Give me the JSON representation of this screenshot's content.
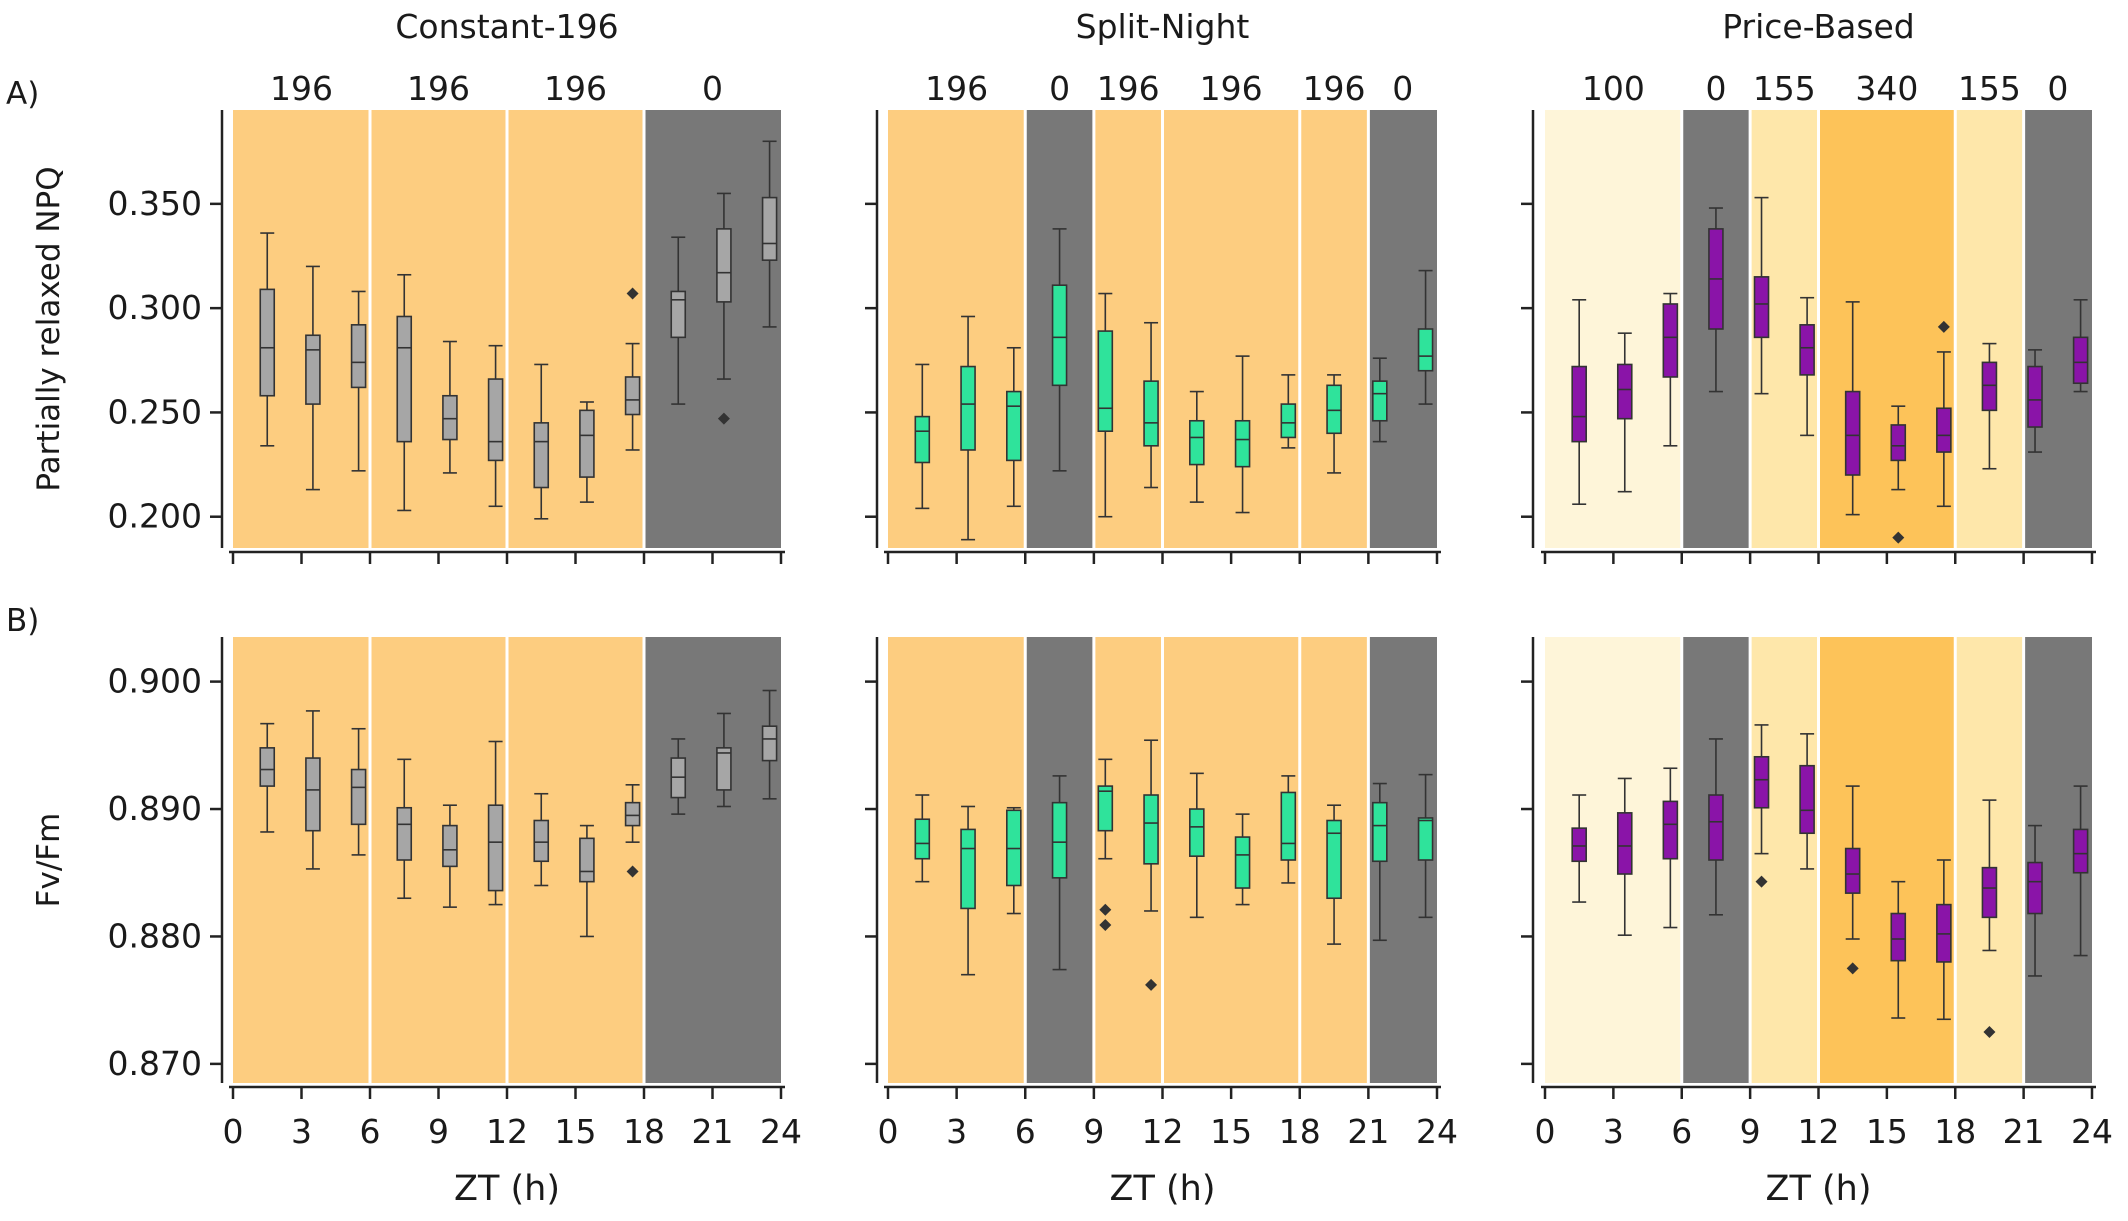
{
  "chart_data": {
    "type": "box",
    "x_axis": {
      "label": "ZT (h)",
      "range": [
        0,
        24
      ],
      "ticks": [
        0,
        3,
        6,
        9,
        12,
        15,
        18,
        21,
        24
      ]
    },
    "columns": [
      {
        "title": "Constant-196",
        "box_color": "#a6a6a6",
        "segments": [
          [
            0,
            6,
            "196"
          ],
          [
            6,
            12,
            "196"
          ],
          [
            12,
            18,
            "196"
          ],
          [
            18,
            24,
            "0"
          ]
        ]
      },
      {
        "title": "Split-Night",
        "box_color": "#2fe39b",
        "segments": [
          [
            0,
            6,
            "196"
          ],
          [
            6,
            9,
            "0"
          ],
          [
            9,
            12,
            "196"
          ],
          [
            12,
            18,
            "196"
          ],
          [
            18,
            21,
            "196"
          ],
          [
            21,
            24,
            "0"
          ]
        ]
      },
      {
        "title": "Price-Based",
        "box_color": "#8a14a8",
        "segments": [
          [
            0,
            6,
            "100"
          ],
          [
            6,
            9,
            "0"
          ],
          [
            9,
            12,
            "155"
          ],
          [
            12,
            18,
            "340"
          ],
          [
            18,
            21,
            "155"
          ],
          [
            21,
            24,
            "0"
          ]
        ]
      }
    ],
    "rows": [
      {
        "label": "A)",
        "ylabel": "Partially relaxed NPQ",
        "ylim": [
          0.185,
          0.395
        ],
        "ticks": [
          0.2,
          0.25,
          0.3,
          0.35
        ],
        "tick_labels": [
          "0.200",
          "0.250",
          "0.300",
          "0.350"
        ],
        "data": [
          [
            {
              "x": 1.5,
              "min": 0.234,
              "q1": 0.258,
              "med": 0.281,
              "q3": 0.309,
              "max": 0.336,
              "out": []
            },
            {
              "x": 3.5,
              "min": 0.213,
              "q1": 0.254,
              "med": 0.28,
              "q3": 0.287,
              "max": 0.32,
              "out": []
            },
            {
              "x": 5.5,
              "min": 0.222,
              "q1": 0.262,
              "med": 0.274,
              "q3": 0.292,
              "max": 0.308,
              "out": []
            },
            {
              "x": 7.5,
              "min": 0.203,
              "q1": 0.236,
              "med": 0.281,
              "q3": 0.296,
              "max": 0.316,
              "out": []
            },
            {
              "x": 9.5,
              "min": 0.221,
              "q1": 0.237,
              "med": 0.247,
              "q3": 0.258,
              "max": 0.284,
              "out": []
            },
            {
              "x": 11.5,
              "min": 0.205,
              "q1": 0.227,
              "med": 0.236,
              "q3": 0.266,
              "max": 0.282,
              "out": []
            },
            {
              "x": 13.5,
              "min": 0.199,
              "q1": 0.214,
              "med": 0.236,
              "q3": 0.245,
              "max": 0.273,
              "out": []
            },
            {
              "x": 15.5,
              "min": 0.207,
              "q1": 0.219,
              "med": 0.239,
              "q3": 0.251,
              "max": 0.255,
              "out": []
            },
            {
              "x": 17.5,
              "min": 0.232,
              "q1": 0.249,
              "med": 0.256,
              "q3": 0.267,
              "max": 0.283,
              "out": [
                0.307
              ]
            },
            {
              "x": 19.5,
              "min": 0.254,
              "q1": 0.286,
              "med": 0.304,
              "q3": 0.308,
              "max": 0.334,
              "out": []
            },
            {
              "x": 21.5,
              "min": 0.266,
              "q1": 0.303,
              "med": 0.317,
              "q3": 0.338,
              "max": 0.355,
              "out": [
                0.247
              ]
            },
            {
              "x": 23.5,
              "min": 0.291,
              "q1": 0.323,
              "med": 0.331,
              "q3": 0.353,
              "max": 0.38,
              "out": []
            }
          ],
          [
            {
              "x": 1.5,
              "min": 0.204,
              "q1": 0.226,
              "med": 0.241,
              "q3": 0.248,
              "max": 0.273,
              "out": []
            },
            {
              "x": 3.5,
              "min": 0.189,
              "q1": 0.232,
              "med": 0.254,
              "q3": 0.272,
              "max": 0.296,
              "out": []
            },
            {
              "x": 5.5,
              "min": 0.205,
              "q1": 0.227,
              "med": 0.253,
              "q3": 0.26,
              "max": 0.281,
              "out": []
            },
            {
              "x": 7.5,
              "min": 0.222,
              "q1": 0.263,
              "med": 0.286,
              "q3": 0.311,
              "max": 0.338,
              "out": []
            },
            {
              "x": 9.5,
              "min": 0.2,
              "q1": 0.241,
              "med": 0.252,
              "q3": 0.289,
              "max": 0.307,
              "out": []
            },
            {
              "x": 11.5,
              "min": 0.214,
              "q1": 0.234,
              "med": 0.245,
              "q3": 0.265,
              "max": 0.293,
              "out": []
            },
            {
              "x": 13.5,
              "min": 0.207,
              "q1": 0.225,
              "med": 0.238,
              "q3": 0.246,
              "max": 0.26,
              "out": []
            },
            {
              "x": 15.5,
              "min": 0.202,
              "q1": 0.224,
              "med": 0.237,
              "q3": 0.246,
              "max": 0.277,
              "out": []
            },
            {
              "x": 17.5,
              "min": 0.233,
              "q1": 0.238,
              "med": 0.245,
              "q3": 0.254,
              "max": 0.268,
              "out": []
            },
            {
              "x": 19.5,
              "min": 0.221,
              "q1": 0.24,
              "med": 0.251,
              "q3": 0.263,
              "max": 0.268,
              "out": []
            },
            {
              "x": 21.5,
              "min": 0.236,
              "q1": 0.246,
              "med": 0.259,
              "q3": 0.265,
              "max": 0.276,
              "out": []
            },
            {
              "x": 23.5,
              "min": 0.254,
              "q1": 0.27,
              "med": 0.277,
              "q3": 0.29,
              "max": 0.318,
              "out": []
            }
          ],
          [
            {
              "x": 1.5,
              "min": 0.206,
              "q1": 0.236,
              "med": 0.248,
              "q3": 0.272,
              "max": 0.304,
              "out": []
            },
            {
              "x": 3.5,
              "min": 0.212,
              "q1": 0.247,
              "med": 0.261,
              "q3": 0.273,
              "max": 0.288,
              "out": []
            },
            {
              "x": 5.5,
              "min": 0.234,
              "q1": 0.267,
              "med": 0.286,
              "q3": 0.302,
              "max": 0.307,
              "out": []
            },
            {
              "x": 7.5,
              "min": 0.26,
              "q1": 0.29,
              "med": 0.314,
              "q3": 0.338,
              "max": 0.348,
              "out": []
            },
            {
              "x": 9.5,
              "min": 0.259,
              "q1": 0.286,
              "med": 0.302,
              "q3": 0.315,
              "max": 0.353,
              "out": []
            },
            {
              "x": 11.5,
              "min": 0.239,
              "q1": 0.268,
              "med": 0.281,
              "q3": 0.292,
              "max": 0.305,
              "out": []
            },
            {
              "x": 13.5,
              "min": 0.201,
              "q1": 0.22,
              "med": 0.239,
              "q3": 0.26,
              "max": 0.303,
              "out": []
            },
            {
              "x": 15.5,
              "min": 0.213,
              "q1": 0.227,
              "med": 0.234,
              "q3": 0.244,
              "max": 0.253,
              "out": [
                0.19
              ]
            },
            {
              "x": 17.5,
              "min": 0.205,
              "q1": 0.231,
              "med": 0.239,
              "q3": 0.252,
              "max": 0.279,
              "out": [
                0.291
              ]
            },
            {
              "x": 19.5,
              "min": 0.223,
              "q1": 0.251,
              "med": 0.263,
              "q3": 0.274,
              "max": 0.283,
              "out": []
            },
            {
              "x": 21.5,
              "min": 0.231,
              "q1": 0.243,
              "med": 0.256,
              "q3": 0.272,
              "max": 0.28,
              "out": []
            },
            {
              "x": 23.5,
              "min": 0.26,
              "q1": 0.264,
              "med": 0.274,
              "q3": 0.286,
              "max": 0.304,
              "out": []
            }
          ]
        ]
      },
      {
        "label": "B)",
        "ylabel": "Fv/Fm",
        "ylim": [
          0.8685,
          0.9035
        ],
        "ticks": [
          0.87,
          0.88,
          0.89,
          0.9
        ],
        "tick_labels": [
          "0.870",
          "0.880",
          "0.890",
          "0.900"
        ],
        "data": [
          [
            {
              "x": 1.5,
              "min": 0.8882,
              "q1": 0.8918,
              "med": 0.8931,
              "q3": 0.8948,
              "max": 0.8967,
              "out": []
            },
            {
              "x": 3.5,
              "min": 0.8853,
              "q1": 0.8883,
              "med": 0.8915,
              "q3": 0.894,
              "max": 0.8977,
              "out": []
            },
            {
              "x": 5.5,
              "min": 0.8864,
              "q1": 0.8888,
              "med": 0.8917,
              "q3": 0.8931,
              "max": 0.8963,
              "out": []
            },
            {
              "x": 7.5,
              "min": 0.883,
              "q1": 0.886,
              "med": 0.8888,
              "q3": 0.8901,
              "max": 0.8939,
              "out": []
            },
            {
              "x": 9.5,
              "min": 0.8823,
              "q1": 0.8855,
              "med": 0.8868,
              "q3": 0.8887,
              "max": 0.8903,
              "out": []
            },
            {
              "x": 11.5,
              "min": 0.8825,
              "q1": 0.8836,
              "med": 0.8874,
              "q3": 0.8903,
              "max": 0.8953,
              "out": []
            },
            {
              "x": 13.5,
              "min": 0.884,
              "q1": 0.8859,
              "med": 0.8874,
              "q3": 0.8891,
              "max": 0.8912,
              "out": []
            },
            {
              "x": 15.5,
              "min": 0.88,
              "q1": 0.8843,
              "med": 0.8851,
              "q3": 0.8877,
              "max": 0.8887,
              "out": []
            },
            {
              "x": 17.5,
              "min": 0.8874,
              "q1": 0.8887,
              "med": 0.8895,
              "q3": 0.8905,
              "max": 0.8919,
              "out": [
                0.8851
              ]
            },
            {
              "x": 19.5,
              "min": 0.8896,
              "q1": 0.8909,
              "med": 0.8925,
              "q3": 0.894,
              "max": 0.8955,
              "out": []
            },
            {
              "x": 21.5,
              "min": 0.8902,
              "q1": 0.8915,
              "med": 0.8944,
              "q3": 0.8948,
              "max": 0.8975,
              "out": []
            },
            {
              "x": 23.5,
              "min": 0.8908,
              "q1": 0.8938,
              "med": 0.8955,
              "q3": 0.8965,
              "max": 0.8993,
              "out": []
            }
          ],
          [
            {
              "x": 1.5,
              "min": 0.8843,
              "q1": 0.8861,
              "med": 0.8873,
              "q3": 0.8892,
              "max": 0.8911,
              "out": []
            },
            {
              "x": 3.5,
              "min": 0.877,
              "q1": 0.8822,
              "med": 0.8869,
              "q3": 0.8884,
              "max": 0.8902,
              "out": []
            },
            {
              "x": 5.5,
              "min": 0.8818,
              "q1": 0.884,
              "med": 0.8869,
              "q3": 0.8899,
              "max": 0.8901,
              "out": []
            },
            {
              "x": 7.5,
              "min": 0.8774,
              "q1": 0.8846,
              "med": 0.8874,
              "q3": 0.8905,
              "max": 0.8926,
              "out": []
            },
            {
              "x": 9.5,
              "min": 0.8861,
              "q1": 0.8883,
              "med": 0.8914,
              "q3": 0.8918,
              "max": 0.8939,
              "out": [
                0.8821,
                0.8809
              ]
            },
            {
              "x": 11.5,
              "min": 0.882,
              "q1": 0.8857,
              "med": 0.8889,
              "q3": 0.8911,
              "max": 0.8954,
              "out": [
                0.8762
              ]
            },
            {
              "x": 13.5,
              "min": 0.8815,
              "q1": 0.8863,
              "med": 0.8886,
              "q3": 0.89,
              "max": 0.8928,
              "out": []
            },
            {
              "x": 15.5,
              "min": 0.8825,
              "q1": 0.8838,
              "med": 0.8864,
              "q3": 0.8878,
              "max": 0.8896,
              "out": []
            },
            {
              "x": 17.5,
              "min": 0.8842,
              "q1": 0.886,
              "med": 0.8873,
              "q3": 0.8913,
              "max": 0.8926,
              "out": []
            },
            {
              "x": 19.5,
              "min": 0.8794,
              "q1": 0.883,
              "med": 0.8881,
              "q3": 0.8891,
              "max": 0.8903,
              "out": []
            },
            {
              "x": 21.5,
              "min": 0.8797,
              "q1": 0.8859,
              "med": 0.8887,
              "q3": 0.8905,
              "max": 0.892,
              "out": []
            },
            {
              "x": 23.5,
              "min": 0.8815,
              "q1": 0.886,
              "med": 0.8891,
              "q3": 0.8893,
              "max": 0.8927,
              "out": []
            }
          ],
          [
            {
              "x": 1.5,
              "min": 0.8827,
              "q1": 0.8859,
              "med": 0.8871,
              "q3": 0.8885,
              "max": 0.8911,
              "out": []
            },
            {
              "x": 3.5,
              "min": 0.8801,
              "q1": 0.8849,
              "med": 0.8871,
              "q3": 0.8897,
              "max": 0.8924,
              "out": []
            },
            {
              "x": 5.5,
              "min": 0.8807,
              "q1": 0.8861,
              "med": 0.8888,
              "q3": 0.8906,
              "max": 0.8932,
              "out": []
            },
            {
              "x": 7.5,
              "min": 0.8817,
              "q1": 0.886,
              "med": 0.889,
              "q3": 0.8911,
              "max": 0.8955,
              "out": []
            },
            {
              "x": 9.5,
              "min": 0.8865,
              "q1": 0.8901,
              "med": 0.8923,
              "q3": 0.8941,
              "max": 0.8966,
              "out": [
                0.8843
              ]
            },
            {
              "x": 11.5,
              "min": 0.8853,
              "q1": 0.8881,
              "med": 0.8899,
              "q3": 0.8934,
              "max": 0.8959,
              "out": []
            },
            {
              "x": 13.5,
              "min": 0.8798,
              "q1": 0.8834,
              "med": 0.8849,
              "q3": 0.8869,
              "max": 0.8918,
              "out": [
                0.8775
              ]
            },
            {
              "x": 15.5,
              "min": 0.8736,
              "q1": 0.8781,
              "med": 0.8798,
              "q3": 0.8818,
              "max": 0.8843,
              "out": []
            },
            {
              "x": 17.5,
              "min": 0.8735,
              "q1": 0.878,
              "med": 0.8802,
              "q3": 0.8825,
              "max": 0.886,
              "out": []
            },
            {
              "x": 19.5,
              "min": 0.8789,
              "q1": 0.8815,
              "med": 0.8838,
              "q3": 0.8854,
              "max": 0.8907,
              "out": [
                0.8725
              ]
            },
            {
              "x": 21.5,
              "min": 0.8769,
              "q1": 0.8818,
              "med": 0.8843,
              "q3": 0.8858,
              "max": 0.8887,
              "out": []
            },
            {
              "x": 23.5,
              "min": 0.8785,
              "q1": 0.885,
              "med": 0.8865,
              "q3": 0.8884,
              "max": 0.8918,
              "out": []
            }
          ]
        ]
      }
    ],
    "segment_colors": {
      "0": "#787878",
      "100": "#fef5d9",
      "155": "#fee7aa",
      "196": "#fdcd80",
      "340": "#fdc359"
    },
    "grid": false
  }
}
